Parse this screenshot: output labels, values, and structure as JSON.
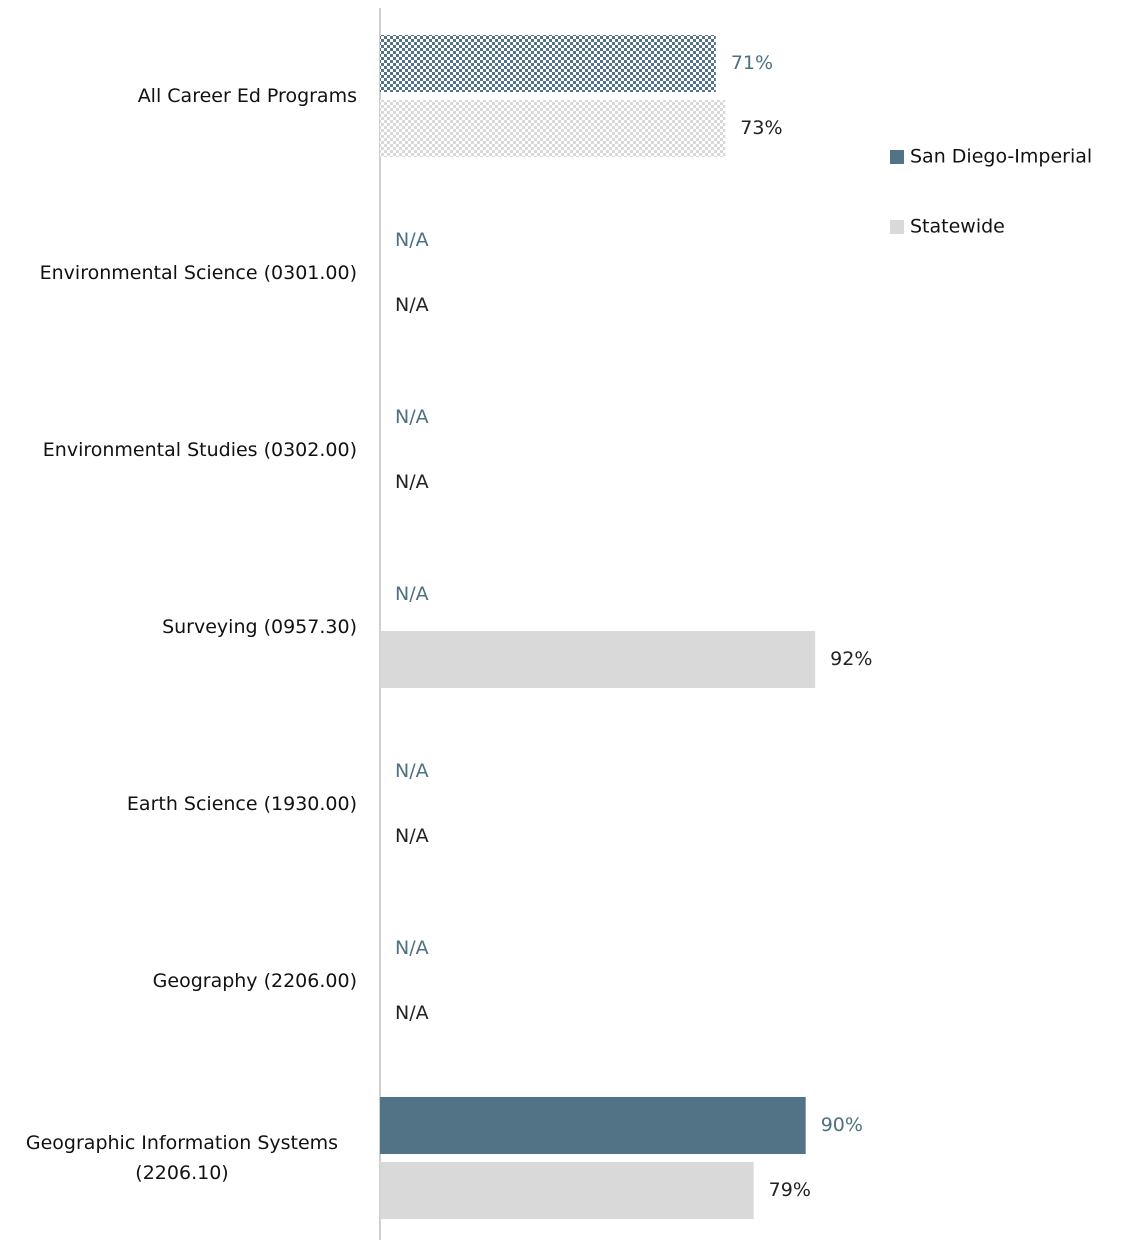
{
  "chart_data": {
    "type": "bar",
    "orientation": "horizontal",
    "categories": [
      "All Career Ed Programs",
      "Environmental Science (0301.00)",
      "Environmental Studies (0302.00)",
      "Surveying (0957.30)",
      "Earth Science (1930.00)",
      "Geography (2206.00)",
      "Geographic Information Systems (2206.10)"
    ],
    "series": [
      {
        "name": "San Diego-Imperial",
        "color": "#527285",
        "label_color": "#4d7180",
        "values": [
          71,
          null,
          null,
          null,
          null,
          null,
          90
        ],
        "value_labels": [
          "71%",
          "N/A",
          "N/A",
          "N/A",
          "N/A",
          "N/A",
          "90%"
        ]
      },
      {
        "name": "Statewide",
        "color": "#d9d9d9",
        "label_color": "#222222",
        "values": [
          73,
          null,
          null,
          92,
          null,
          null,
          79
        ],
        "value_labels": [
          "73%",
          "N/A",
          "N/A",
          "92%",
          "N/A",
          "N/A",
          "79%"
        ]
      }
    ],
    "patterned": [
      true,
      false,
      false,
      false,
      false,
      false,
      false
    ],
    "xlim": [
      0,
      100
    ],
    "legend": "right"
  }
}
